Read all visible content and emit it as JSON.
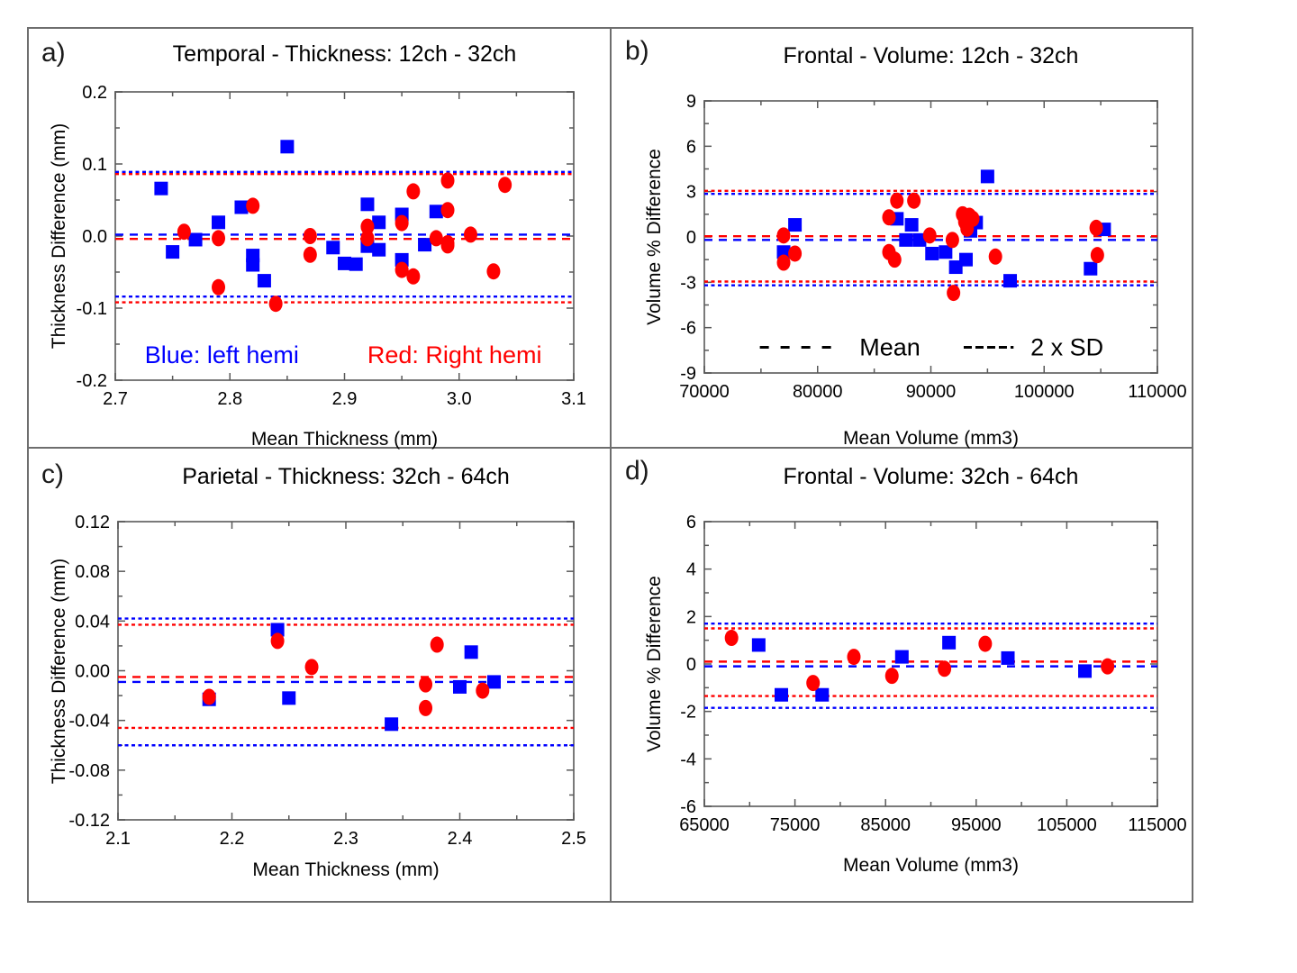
{
  "colors": {
    "blue": "#0000ff",
    "red": "#ff0000",
    "frame": "#7a7a7a",
    "tick": "#595959",
    "text": "#000000",
    "legend_text": "#000000"
  },
  "chart_data": [
    {
      "id": "a",
      "type": "scatter",
      "label": "a)",
      "title": "Temporal - Thickness: 12ch - 32ch",
      "xlabel": "Mean Thickness (mm)",
      "ylabel": "Thickness Difference (mm)",
      "xlim": [
        2.7,
        3.1
      ],
      "ylim": [
        -0.2,
        0.2
      ],
      "xminor": 0.05,
      "yminor": 0.05,
      "xticks": {
        "values": [
          2.7,
          2.8,
          2.9,
          3.0,
          3.1
        ],
        "labels": [
          "2.7",
          "2.8",
          "2.9",
          "3.0",
          "3.1"
        ]
      },
      "yticks": {
        "values": [
          0.2,
          0.1,
          0,
          -0.1,
          -0.2
        ],
        "labels": [
          "0.2",
          "0.1",
          "0.0",
          "-0.1",
          "-0.2"
        ]
      },
      "lines": [
        {
          "color": "blue",
          "mean": 0.002,
          "upper": 0.089,
          "lower": -0.084
        },
        {
          "color": "red",
          "mean": -0.004,
          "upper": 0.086,
          "lower": -0.092
        }
      ],
      "series": [
        {
          "name": "left hemi",
          "color": "blue",
          "marker": "square",
          "points": [
            [
              2.74,
              0.066
            ],
            [
              2.75,
              -0.022
            ],
            [
              2.77,
              -0.005
            ],
            [
              2.79,
              0.019
            ],
            [
              2.81,
              0.04
            ],
            [
              2.82,
              -0.027
            ],
            [
              2.82,
              -0.04
            ],
            [
              2.83,
              -0.062
            ],
            [
              2.85,
              0.124
            ],
            [
              2.89,
              -0.016
            ],
            [
              2.9,
              -0.038
            ],
            [
              2.91,
              -0.039
            ],
            [
              2.92,
              0.044
            ],
            [
              2.92,
              -0.014
            ],
            [
              2.93,
              0.019
            ],
            [
              2.93,
              -0.019
            ],
            [
              2.95,
              0.03
            ],
            [
              2.95,
              -0.033
            ],
            [
              2.97,
              -0.012
            ],
            [
              2.98,
              0.034
            ]
          ]
        },
        {
          "name": "Right hemi",
          "color": "red",
          "marker": "circle",
          "points": [
            [
              2.76,
              0.006
            ],
            [
              2.79,
              -0.003
            ],
            [
              2.79,
              -0.071
            ],
            [
              2.82,
              0.042
            ],
            [
              2.84,
              -0.094
            ],
            [
              2.87,
              0.0
            ],
            [
              2.87,
              -0.026
            ],
            [
              2.92,
              0.013
            ],
            [
              2.92,
              -0.003
            ],
            [
              2.95,
              0.018
            ],
            [
              2.96,
              0.062
            ],
            [
              2.95,
              -0.047
            ],
            [
              2.96,
              -0.056
            ],
            [
              2.98,
              -0.003
            ],
            [
              2.99,
              -0.013
            ],
            [
              2.99,
              -0.01
            ],
            [
              2.99,
              0.036
            ],
            [
              2.99,
              0.077
            ],
            [
              3.01,
              0.002
            ],
            [
              3.03,
              -0.049
            ],
            [
              3.04,
              0.071
            ]
          ]
        }
      ],
      "annotations": [
        {
          "text": "Blue: left hemi",
          "color": "blue",
          "x": 2.793,
          "y": -0.165
        },
        {
          "text": "Red: Right hemi",
          "color": "red",
          "x": 2.996,
          "y": -0.165
        }
      ]
    },
    {
      "id": "b",
      "type": "scatter",
      "label": "b)",
      "title": "Frontal - Volume: 12ch - 32ch",
      "xlabel": "Mean Volume (mm3)",
      "ylabel": "Volume % Difference",
      "xlim": [
        70000,
        110000
      ],
      "ylim": [
        -9,
        9
      ],
      "xminor": 5000,
      "yminor": 1.5,
      "xticks": {
        "values": [
          70000,
          80000,
          90000,
          100000,
          110000
        ],
        "labels": [
          "70000",
          "80000",
          "90000",
          "100000",
          "110000"
        ]
      },
      "yticks": {
        "values": [
          9,
          6,
          3,
          0,
          -3,
          -6,
          -9
        ],
        "labels": [
          "9",
          "6",
          "3",
          "0",
          "-3",
          "-6",
          "-9"
        ]
      },
      "lines": [
        {
          "color": "blue",
          "mean": -0.2,
          "upper": 2.85,
          "lower": -3.2
        },
        {
          "color": "red",
          "mean": 0.05,
          "upper": 3.05,
          "lower": -2.95
        }
      ],
      "series": [
        {
          "name": "left hemi",
          "color": "blue",
          "marker": "square",
          "points": [
            [
              78000,
              0.8
            ],
            [
              77000,
              -1.0
            ],
            [
              87000,
              1.2
            ],
            [
              88300,
              0.8
            ],
            [
              87800,
              -0.2
            ],
            [
              89000,
              -0.2
            ],
            [
              90100,
              -1.1
            ],
            [
              91300,
              -1.0
            ],
            [
              92200,
              -2.0
            ],
            [
              93100,
              -1.5
            ],
            [
              94000,
              0.95
            ],
            [
              93500,
              0.4
            ],
            [
              95000,
              4.0
            ],
            [
              97000,
              -2.9
            ],
            [
              104100,
              -2.1
            ],
            [
              105300,
              0.5
            ]
          ]
        },
        {
          "name": "Right hemi",
          "color": "red",
          "marker": "circle",
          "points": [
            [
              77000,
              0.1
            ],
            [
              78000,
              -1.1
            ],
            [
              77000,
              -1.7
            ],
            [
              86300,
              1.3
            ],
            [
              87000,
              2.4
            ],
            [
              88500,
              2.4
            ],
            [
              86300,
              -1.0
            ],
            [
              86800,
              -1.5
            ],
            [
              89900,
              0.1
            ],
            [
              91900,
              -0.2
            ],
            [
              92800,
              1.5
            ],
            [
              93400,
              1.4
            ],
            [
              93700,
              1.2
            ],
            [
              93000,
              1.0
            ],
            [
              93200,
              0.55
            ],
            [
              92000,
              -3.7
            ],
            [
              95700,
              -1.3
            ],
            [
              104600,
              0.6
            ],
            [
              104700,
              -1.2
            ]
          ]
        }
      ],
      "legend": {
        "y": -7.3,
        "items": [
          {
            "label": "Mean",
            "dash_from": 74900,
            "dash_to": 82200,
            "label_x": 83700,
            "style": "mean"
          },
          {
            "label": "2 x SD",
            "dash_from": 92900,
            "dash_to": 97300,
            "label_x": 98800,
            "style": "sd"
          }
        ]
      }
    },
    {
      "id": "c",
      "type": "scatter",
      "label": "c)",
      "title": "Parietal - Thickness: 32ch - 64ch",
      "xlabel": "Mean Thickness (mm)",
      "ylabel": "Thickness Difference (mm)",
      "xlim": [
        2.1,
        2.5
      ],
      "ylim": [
        -0.12,
        0.12
      ],
      "xminor": 0.05,
      "yminor": 0.02,
      "xticks": {
        "values": [
          2.1,
          2.2,
          2.3,
          2.4,
          2.5
        ],
        "labels": [
          "2.1",
          "2.2",
          "2.3",
          "2.4",
          "2.5"
        ]
      },
      "yticks": {
        "values": [
          0.12,
          0.08,
          0.04,
          0,
          -0.04,
          -0.08,
          -0.12
        ],
        "labels": [
          "0.12",
          "0.08",
          "0.04",
          "0.00",
          "-0.04",
          "-0.08",
          "-0.12"
        ]
      },
      "lines": [
        {
          "color": "blue",
          "mean": -0.009,
          "upper": 0.042,
          "lower": -0.06
        },
        {
          "color": "red",
          "mean": -0.005,
          "upper": 0.037,
          "lower": -0.046
        }
      ],
      "series": [
        {
          "name": "left hemi",
          "color": "blue",
          "marker": "square",
          "points": [
            [
              2.18,
              -0.023
            ],
            [
              2.24,
              0.033
            ],
            [
              2.25,
              -0.022
            ],
            [
              2.34,
              -0.043
            ],
            [
              2.4,
              -0.013
            ],
            [
              2.41,
              0.015
            ],
            [
              2.43,
              -0.009
            ]
          ]
        },
        {
          "name": "Right hemi",
          "color": "red",
          "marker": "circle",
          "points": [
            [
              2.18,
              -0.021
            ],
            [
              2.24,
              0.024
            ],
            [
              2.27,
              0.003
            ],
            [
              2.37,
              -0.03
            ],
            [
              2.37,
              -0.011
            ],
            [
              2.38,
              0.021
            ],
            [
              2.42,
              -0.016
            ]
          ]
        }
      ]
    },
    {
      "id": "d",
      "type": "scatter",
      "label": "d)",
      "title": "Frontal - Volume: 32ch - 64ch",
      "xlabel": "Mean Volume (mm3)",
      "ylabel": "Volume % Difference",
      "xlim": [
        65000,
        115000
      ],
      "ylim": [
        -6,
        6
      ],
      "xminor": 5000,
      "yminor": 1,
      "xticks": {
        "values": [
          65000,
          75000,
          85000,
          95000,
          105000,
          115000
        ],
        "labels": [
          "65000",
          "75000",
          "85000",
          "95000",
          "105000",
          "115000"
        ]
      },
      "yticks": {
        "values": [
          6,
          4,
          2,
          0,
          -2,
          -4,
          -6
        ],
        "labels": [
          "6",
          "4",
          "2",
          "0",
          "-2",
          "-4",
          "-6"
        ]
      },
      "lines": [
        {
          "color": "blue",
          "mean": -0.1,
          "upper": 1.7,
          "lower": -1.85
        },
        {
          "color": "red",
          "mean": 0.1,
          "upper": 1.5,
          "lower": -1.35
        }
      ],
      "series": [
        {
          "name": "left hemi",
          "color": "blue",
          "marker": "square",
          "points": [
            [
              71000,
              0.8
            ],
            [
              73500,
              -1.3
            ],
            [
              78000,
              -1.3
            ],
            [
              86800,
              0.3
            ],
            [
              92000,
              0.9
            ],
            [
              98500,
              0.25
            ],
            [
              107000,
              -0.3
            ]
          ]
        },
        {
          "name": "Right hemi",
          "color": "red",
          "marker": "circle",
          "points": [
            [
              68000,
              1.1
            ],
            [
              77000,
              -0.8
            ],
            [
              81500,
              0.3
            ],
            [
              85700,
              -0.5
            ],
            [
              91500,
              -0.2
            ],
            [
              96000,
              0.85
            ],
            [
              109500,
              -0.1
            ]
          ]
        }
      ]
    }
  ]
}
